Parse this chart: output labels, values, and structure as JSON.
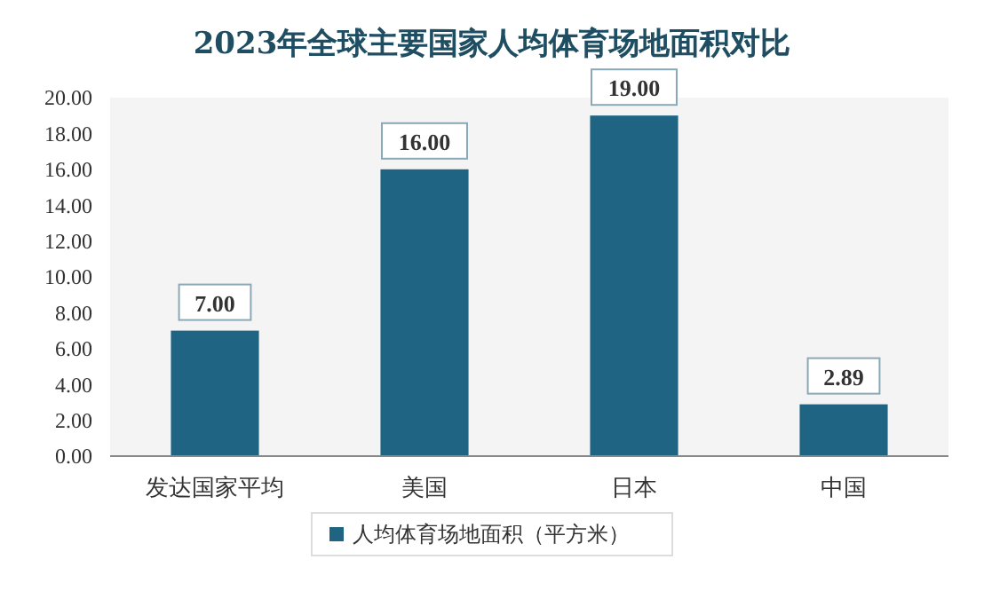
{
  "chart_data": {
    "type": "bar",
    "title": "2023年全球主要国家人均体育场地面积对比",
    "categories": [
      "发达国家平均",
      "美国",
      "日本",
      "中国"
    ],
    "series": [
      {
        "name": "人均体育场地面积（平方米）",
        "color": "#1f6483",
        "values": [
          7.0,
          16.0,
          19.0,
          2.89
        ],
        "value_labels": [
          "7.00",
          "16.00",
          "19.00",
          "2.89"
        ]
      }
    ],
    "ylim": [
      0,
      20
    ],
    "yticks": [
      {
        "value": 0,
        "label": "0.00"
      },
      {
        "value": 2,
        "label": "2.00"
      },
      {
        "value": 4,
        "label": "4.00"
      },
      {
        "value": 6,
        "label": "6.00"
      },
      {
        "value": 8,
        "label": "8.00"
      },
      {
        "value": 10,
        "label": "10.00"
      },
      {
        "value": 12,
        "label": "12.00"
      },
      {
        "value": 14,
        "label": "14.00"
      },
      {
        "value": 16,
        "label": "16.00"
      },
      {
        "value": 18,
        "label": "18.00"
      },
      {
        "value": 20,
        "label": "20.00"
      }
    ],
    "grid": false,
    "legend": "bottom"
  }
}
